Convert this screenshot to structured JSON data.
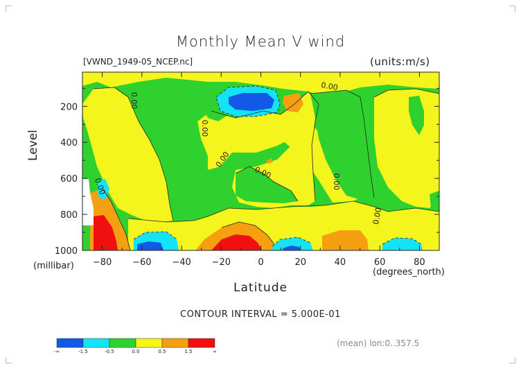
{
  "chart_data": {
    "type": "heatmap",
    "title": "Monthly Mean V wind",
    "dataset": "[VWND_1949-05_NCEP.nc]",
    "units": "(units:m/s)",
    "ylabel": "Level",
    "yunit": "(millibar)",
    "xlabel": "Latitude",
    "xunit": "(degrees_north)",
    "xlim": [
      -90,
      90
    ],
    "ylim": [
      1000,
      10
    ],
    "x_ticks": [
      -80,
      -60,
      -40,
      -20,
      0,
      20,
      40,
      60,
      80
    ],
    "y_ticks": [
      200,
      400,
      600,
      800,
      1000
    ],
    "contour_interval_text": "CONTOUR INTERVAL = 5.000E-01",
    "contour_labels": [
      "0.00",
      "0.00",
      "0.00",
      "0.00",
      "0.00",
      "0.00",
      "0.00",
      "0.00"
    ],
    "colorbar": {
      "colors": [
        "#1459e6",
        "#13e3f5",
        "#2ed12e",
        "#f5f51e",
        "#f5a010",
        "#f01010"
      ],
      "labels": [
        "-∞",
        "-1.5",
        "-0.5",
        "0.0",
        "0.5",
        "1.5",
        "∞"
      ]
    },
    "footer": "(mean) lon:0..357.5"
  }
}
